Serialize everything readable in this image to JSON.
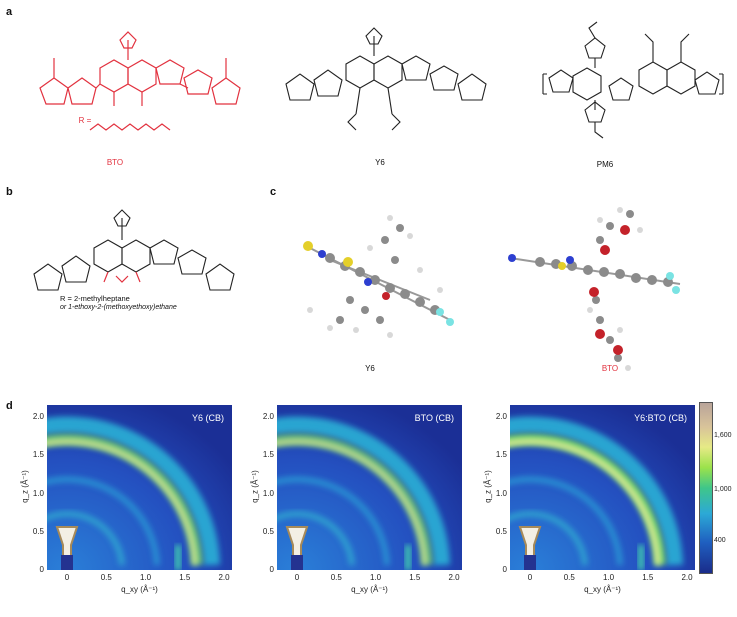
{
  "panels": {
    "a": {
      "label": "a",
      "mol1": "BTO",
      "mol2": "Y6",
      "mol3": "PM6",
      "r_formula": "R ="
    },
    "b": {
      "label": "b",
      "r_line1": "R = 2-methylheptane",
      "r_line2": "or 1-ethoxy-2-(methoxyethoxy)ethane"
    },
    "c": {
      "label": "c",
      "mol1": "Y6",
      "mol2": "BTO"
    },
    "d": {
      "label": "d"
    }
  },
  "gixd": [
    {
      "title": "Y6 (CB)",
      "intensity": 0.85
    },
    {
      "title": "BTO (CB)",
      "intensity": 0.78
    },
    {
      "title": "Y6:BTO (CB)",
      "intensity": 1.0
    }
  ],
  "axes": {
    "xlabel": "q_xy (Å⁻¹)",
    "ylabel": "q_z (Å⁻¹)",
    "xticks": [
      "0",
      "0.5",
      "1.0",
      "1.5",
      "2.0"
    ],
    "yticks": [
      "0",
      "0.5",
      "1.0",
      "1.5",
      "2.0"
    ]
  },
  "colorbar": {
    "ticks": [
      "400",
      "1,000",
      "1,600"
    ]
  },
  "colors": {
    "accent_red": "#e2323f"
  }
}
